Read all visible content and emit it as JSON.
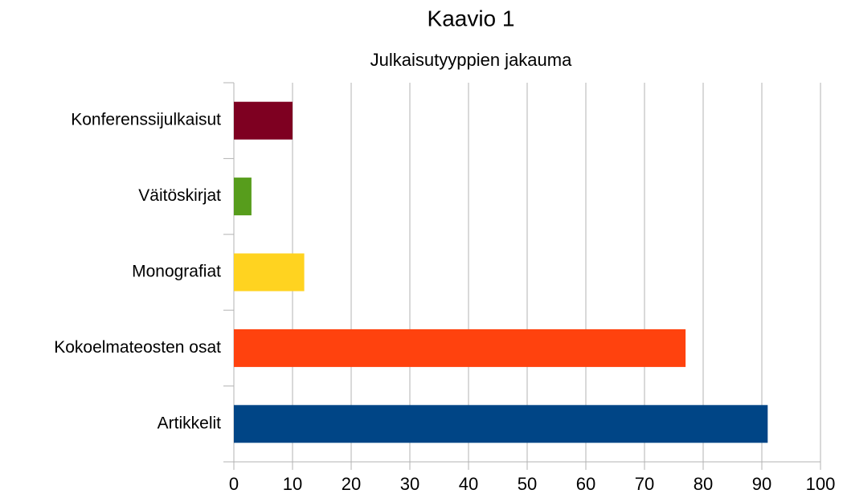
{
  "chart_data": {
    "type": "bar",
    "orientation": "horizontal",
    "title": "Kaavio 1",
    "subtitle": "Julkaisutyyppien jakauma",
    "categories": [
      "Artikkelit",
      "Kokoelmateosten osat",
      "Monografiat",
      "Väitöskirjat",
      "Konferenssijulkaisut"
    ],
    "values": [
      91,
      77,
      12,
      3,
      10
    ],
    "colors": [
      "#004586",
      "#ff420e",
      "#ffd320",
      "#579d1c",
      "#7e0021"
    ],
    "xlim": [
      0,
      100
    ],
    "xticks": [
      0,
      10,
      20,
      30,
      40,
      50,
      60,
      70,
      80,
      90,
      100
    ],
    "grid": true
  }
}
